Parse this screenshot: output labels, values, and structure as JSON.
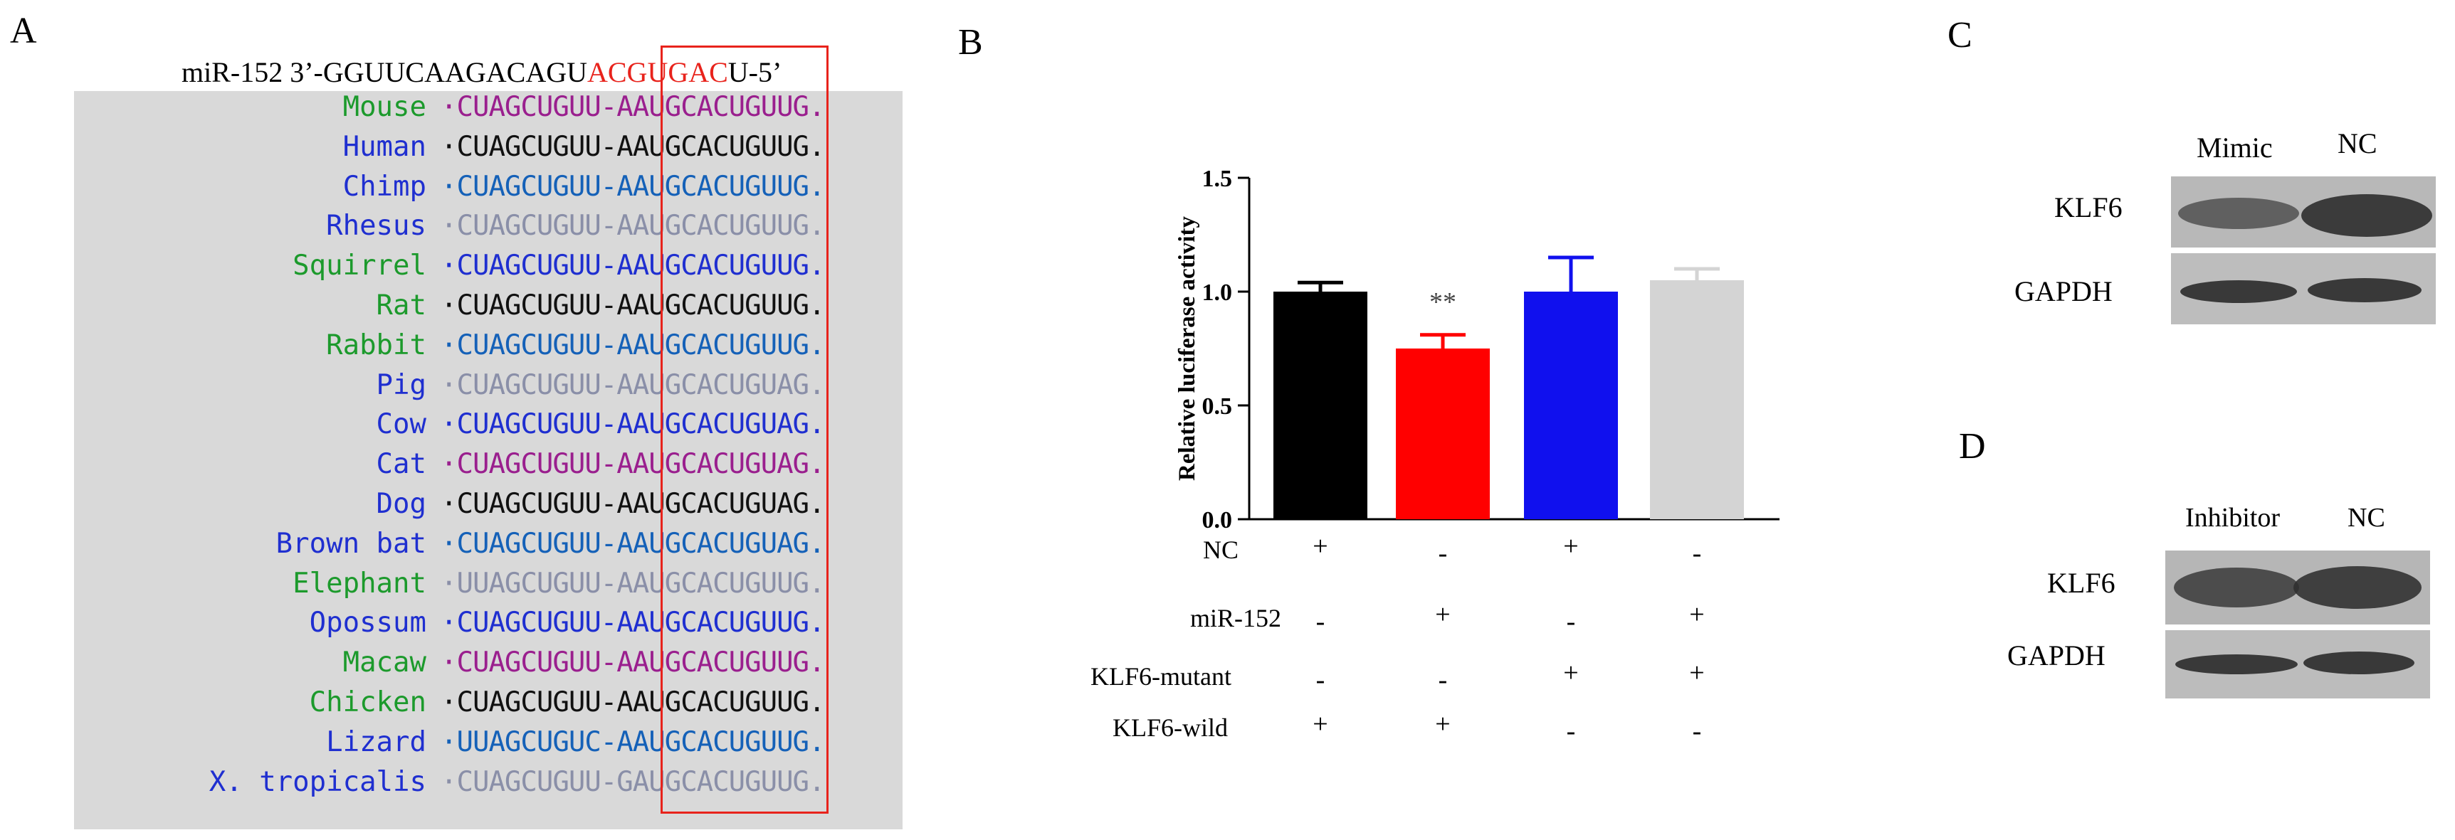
{
  "panel_a": {
    "letter": "A",
    "mir_prefix": "miR-152 3’-GGUUCAAGACAGU",
    "mir_seed": "ACGUGAC",
    "mir_suffix": "U-5’",
    "rows": [
      {
        "species": "Mouse",
        "species_color": "#1c9a2c",
        "seq": "·CUAGCUGUU-AAUGCACUGUUG.",
        "seq_color": "#9a1f8e"
      },
      {
        "species": "Human",
        "species_color": "#1f2fd0",
        "seq": "·CUAGCUGUU-AAUGCACUGUUG.",
        "seq_color": "#111111"
      },
      {
        "species": "Chimp",
        "species_color": "#1f2fd0",
        "seq": "·CUAGCUGUU-AAUGCACUGUUG.",
        "seq_color": "#1561b8"
      },
      {
        "species": "Rhesus",
        "species_color": "#1f2fd0",
        "seq": "·CUAGCUGUU-AAUGCACUGUUG.",
        "seq_color": "#8a8fa8"
      },
      {
        "species": "Squirrel",
        "species_color": "#1c9a2c",
        "seq": "·CUAGCUGUU-AAUGCACUGUUG.",
        "seq_color": "#1f2fd0"
      },
      {
        "species": "Rat",
        "species_color": "#1c9a2c",
        "seq": "·CUAGCUGUU-AAUGCACUGUUG.",
        "seq_color": "#111111"
      },
      {
        "species": "Rabbit",
        "species_color": "#1c9a2c",
        "seq": "·CUAGCUGUU-AAUGCACUGUUG.",
        "seq_color": "#1561b8"
      },
      {
        "species": "Pig",
        "species_color": "#1f2fd0",
        "seq": "·CUAGCUGUU-AAUGCACUGUAG.",
        "seq_color": "#8a8fa8"
      },
      {
        "species": "Cow",
        "species_color": "#1f2fd0",
        "seq": "·CUAGCUGUU-AAUGCACUGUAG.",
        "seq_color": "#1f2fd0"
      },
      {
        "species": "Cat",
        "species_color": "#1f2fd0",
        "seq": "·CUAGCUGUU-AAUGCACUGUAG.",
        "seq_color": "#9a1f8e"
      },
      {
        "species": "Dog",
        "species_color": "#1f2fd0",
        "seq": "·CUAGCUGUU-AAUGCACUGUAG.",
        "seq_color": "#111111"
      },
      {
        "species": "Brown bat",
        "species_color": "#1f2fd0",
        "seq": "·CUAGCUGUU-AAUGCACUGUAG.",
        "seq_color": "#1561b8"
      },
      {
        "species": "Elephant",
        "species_color": "#1c9a2c",
        "seq": "·UUAGCUGUU-AAUGCACUGUUG.",
        "seq_color": "#8a8fa8"
      },
      {
        "species": "Opossum",
        "species_color": "#1f2fd0",
        "seq": "·CUAGCUGUU-AAUGCACUGUUG.",
        "seq_color": "#1f2fd0"
      },
      {
        "species": "Macaw",
        "species_color": "#1c9a2c",
        "seq": "·CUAGCUGUU-AAUGCACUGUUG.",
        "seq_color": "#9a1f8e"
      },
      {
        "species": "Chicken",
        "species_color": "#1c9a2c",
        "seq": "·CUAGCUGUU-AAUGCACUGUUG.",
        "seq_color": "#111111"
      },
      {
        "species": "Lizard",
        "species_color": "#1f2fd0",
        "seq": "·UUAGCUGUC-AAUGCACUGUUG.",
        "seq_color": "#1561b8"
      },
      {
        "species": "X. tropicalis",
        "species_color": "#1f2fd0",
        "seq": "·CUAGCUGUU-GAUGCACUGUUG.",
        "seq_color": "#8a8fa8"
      }
    ],
    "seed_box_color": "#e8231c"
  },
  "panel_b": {
    "letter": "B",
    "significance": "**",
    "row_labels": [
      "NC",
      "miR-152",
      "KLF6-mutant",
      "KLF6-wild"
    ],
    "signs": [
      [
        "+",
        "-",
        "+",
        "-"
      ],
      [
        "-",
        "+",
        "-",
        "+"
      ],
      [
        "-",
        "-",
        "+",
        "+"
      ],
      [
        "+",
        "+",
        "-",
        "-"
      ]
    ]
  },
  "chart_data": {
    "type": "bar",
    "ylabel": "Relative luciferase activity",
    "ylim": [
      0,
      1.5
    ],
    "yticks": [
      "0.0",
      "0.5",
      "1.0",
      "1.5"
    ],
    "values": [
      1.0,
      0.75,
      1.0,
      1.05
    ],
    "errors": [
      0.04,
      0.06,
      0.15,
      0.05
    ],
    "colors": [
      "#000000",
      "#ff0000",
      "#1010ee",
      "#d4d4d4"
    ],
    "grid": false
  },
  "panel_c": {
    "letter": "C",
    "lane1": "Mimic",
    "lane2": "NC",
    "band1": "KLF6",
    "band2": "GAPDH"
  },
  "panel_d": {
    "letter": "D",
    "lane1": "Inhibitor",
    "lane2": "NC",
    "band1": "KLF6",
    "band2": "GAPDH"
  }
}
